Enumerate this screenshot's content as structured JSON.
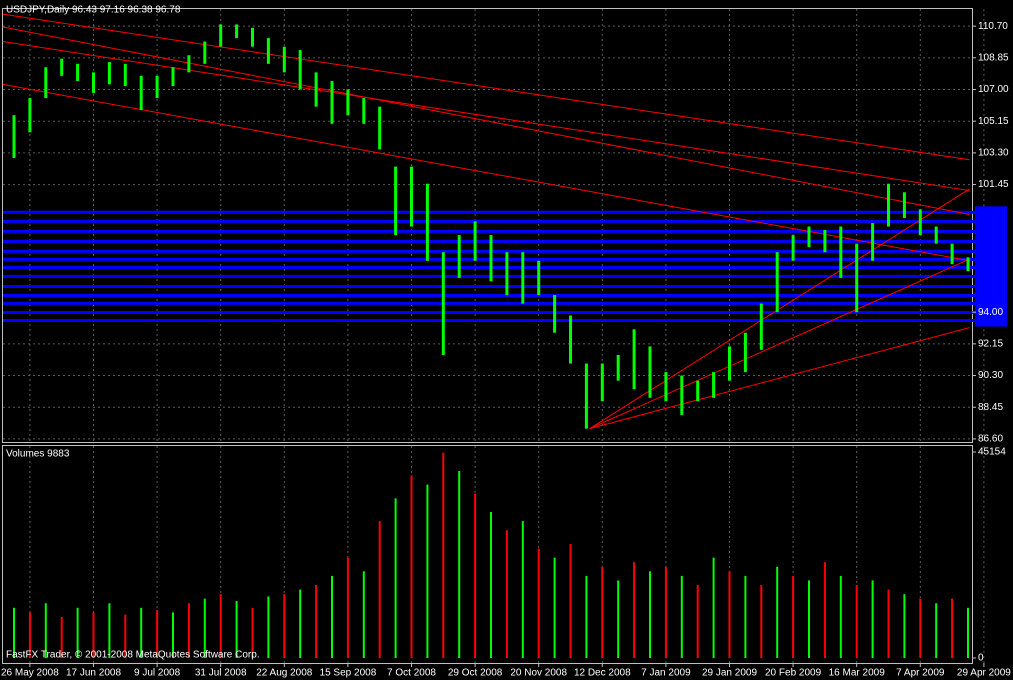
{
  "chart_data": {
    "type": "ohlc",
    "title": "USDJPY,Daily  96.43 97.16 96.38 96.78",
    "volume_title": "Volumes 9883",
    "footer": "FastFX Trader, © 2001-2008 MetaQuotes Software Corp.",
    "categories": [
      null,
      "26 May 2008",
      null,
      null,
      null,
      "17 Jun 2008",
      null,
      null,
      null,
      "9 Jul 2008",
      null,
      null,
      null,
      "31 Jul 2008",
      null,
      null,
      null,
      "22 Aug 2008",
      null,
      null,
      null,
      "15 Sep 2008",
      null,
      null,
      null,
      "7 Oct 2008",
      null,
      null,
      null,
      "29 Oct 2008",
      null,
      null,
      null,
      "20 Nov 2008",
      null,
      null,
      null,
      "12 Dec 2008",
      null,
      null,
      null,
      "7 Jan 2009",
      null,
      null,
      null,
      "29 Jan 2009",
      null,
      null,
      null,
      "20 Feb 2009",
      null,
      null,
      null,
      "16 Mar 2009",
      null,
      null,
      null,
      "7 Apr 2009",
      null,
      null,
      null,
      "29 Apr 2009"
    ],
    "series": [
      {
        "name": "High",
        "color": "#00ff00",
        "values": [
          105.5,
          106.5,
          108.3,
          108.8,
          108.5,
          108.0,
          108.6,
          108.5,
          107.8,
          107.8,
          108.3,
          109.0,
          109.8,
          110.8,
          110.8,
          110.6,
          110.0,
          109.5,
          109.3,
          108.0,
          107.5,
          107.0,
          106.5,
          106.0,
          102.5,
          102.5,
          101.5,
          97.5,
          98.5,
          99.3,
          98.5,
          97.5,
          97.5,
          97.0,
          95.0,
          93.8,
          91.0,
          91.0,
          91.5,
          93.0,
          92.0,
          90.5,
          90.3,
          90.0,
          90.5,
          92.0,
          92.8,
          94.5,
          97.5,
          98.5,
          99.0,
          98.8,
          99.0,
          98.0,
          99.2,
          101.5,
          101.0,
          100.0,
          99.0,
          98.0,
          97.2,
          null
        ]
      },
      {
        "name": "Low",
        "color": "#00ff00",
        "values": [
          103.0,
          104.5,
          106.5,
          107.8,
          107.5,
          106.8,
          107.3,
          107.2,
          105.8,
          106.5,
          107.2,
          108.0,
          108.5,
          109.5,
          110.0,
          109.5,
          108.5,
          108.0,
          107.0,
          106.0,
          105.0,
          105.5,
          105.0,
          103.5,
          98.5,
          99.0,
          97.0,
          91.5,
          96.0,
          97.0,
          95.8,
          95.0,
          94.5,
          95.0,
          92.8,
          91.0,
          87.2,
          88.8,
          90.0,
          89.5,
          89.0,
          88.8,
          88.0,
          88.8,
          89.0,
          90.0,
          90.5,
          91.8,
          94.0,
          97.0,
          97.8,
          97.5,
          96.0,
          94.0,
          97.0,
          99.0,
          99.5,
          98.5,
          98.0,
          96.8,
          96.4,
          null
        ]
      }
    ],
    "volumes": {
      "up_color": "#00ff00",
      "down_color": "#ff0000",
      "values": [
        11000,
        10000,
        12000,
        9000,
        11000,
        10000,
        12000,
        9500,
        11000,
        10500,
        10000,
        12000,
        13000,
        14000,
        12500,
        11000,
        13500,
        14000,
        15000,
        16000,
        18000,
        22000,
        19000,
        30000,
        35000,
        40000,
        38000,
        45000,
        41000,
        36000,
        32000,
        28000,
        30000,
        24000,
        22000,
        25000,
        18000,
        20000,
        17000,
        21000,
        19000,
        20000,
        18000,
        16000,
        22000,
        19000,
        18000,
        16000,
        20000,
        18000,
        17000,
        21000,
        18000,
        16000,
        17000,
        15000,
        14000,
        13000,
        12000,
        13000,
        11000,
        null
      ],
      "ylim": [
        0,
        45154
      ],
      "yticks": [
        45154,
        0
      ]
    },
    "ylim": [
      86.42,
      111.7
    ],
    "yticks": [
      {
        "value": 86.6,
        "label": "86.60"
      },
      {
        "value": 88.45,
        "label": "88.45"
      },
      {
        "value": 90.3,
        "label": "90.30"
      },
      {
        "value": 92.15,
        "label": "92.15"
      },
      {
        "value": 94.0,
        "label": "94.00"
      },
      {
        "value": 101.45,
        "label": "101.45"
      },
      {
        "value": 103.3,
        "label": "103.30"
      },
      {
        "value": 105.15,
        "label": "105.15"
      },
      {
        "value": 107.0,
        "label": "107.00"
      },
      {
        "value": 108.85,
        "label": "108.85"
      },
      {
        "value": 110.7,
        "label": "110.70"
      }
    ],
    "grid": true,
    "horizontal_lines": {
      "color": "#0000ff",
      "values": [
        99.83,
        99.3,
        98.72,
        98.13,
        97.55,
        97.08,
        96.61,
        96.09,
        95.5,
        94.97,
        94.51,
        93.98,
        93.51
      ]
    },
    "trend_lines": {
      "color": "#ff0000",
      "lines": [
        {
          "x": [
            -0.7,
            60.1
          ],
          "y": [
            111.4,
            102.9
          ]
        },
        {
          "x": [
            -0.7,
            60.1
          ],
          "y": [
            110.65,
            99.7
          ]
        },
        {
          "x": [
            -0.7,
            60.1
          ],
          "y": [
            109.8,
            101.1
          ]
        },
        {
          "x": [
            -0.7,
            60.1
          ],
          "y": [
            107.3,
            97.0
          ]
        },
        {
          "x": [
            36.2,
            60.1
          ],
          "y": [
            87.2,
            101.2
          ]
        },
        {
          "x": [
            36.2,
            60.1
          ],
          "y": [
            87.2,
            97.1
          ]
        },
        {
          "x": [
            36.2,
            60.1
          ],
          "y": [
            87.2,
            93.1
          ]
        }
      ]
    }
  }
}
